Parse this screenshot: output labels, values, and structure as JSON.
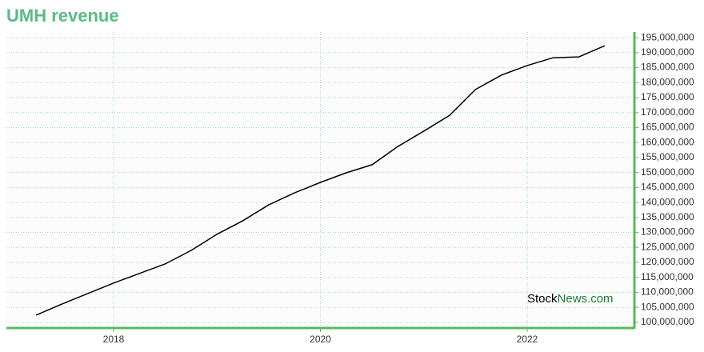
{
  "chart_data": {
    "type": "line",
    "title": "UMH revenue",
    "x": [
      2017.25,
      2017.5,
      2017.75,
      2018,
      2018.25,
      2018.5,
      2018.75,
      2019,
      2019.25,
      2019.5,
      2019.75,
      2020,
      2020.25,
      2020.5,
      2020.75,
      2021,
      2021.25,
      2021.5,
      2021.75,
      2022,
      2022.25,
      2022.5,
      2022.75
    ],
    "series": [
      {
        "name": "Revenue",
        "color": "#000000",
        "values": [
          102400000,
          106100000,
          109600000,
          113100000,
          116300000,
          119500000,
          124000000,
          129400000,
          133900000,
          139200000,
          143200000,
          146700000,
          149900000,
          152600000,
          158700000,
          163800000,
          169100000,
          177700000,
          182500000,
          185700000,
          188300000,
          188600000,
          192300000
        ]
      }
    ],
    "xlim": [
      2016.963,
      2023.037
    ],
    "xticks": [
      2018,
      2020,
      2022
    ],
    "ylim": [
      98100000,
      196900000
    ],
    "yticks": [
      {
        "value": 100000000,
        "label": "100,000,000"
      },
      {
        "value": 105000000,
        "label": "105,000,000"
      },
      {
        "value": 110000000,
        "label": "110,000,000"
      },
      {
        "value": 115000000,
        "label": "115,000,000"
      },
      {
        "value": 120000000,
        "label": "120,000,000"
      },
      {
        "value": 125000000,
        "label": "125,000,000"
      },
      {
        "value": 130000000,
        "label": "130,000,000"
      },
      {
        "value": 135000000,
        "label": "135,000,000"
      },
      {
        "value": 140000000,
        "label": "140,000,000"
      },
      {
        "value": 145000000,
        "label": "145,000,000"
      },
      {
        "value": 150000000,
        "label": "150,000,000"
      },
      {
        "value": 155000000,
        "label": "155,000,000"
      },
      {
        "value": 160000000,
        "label": "160,000,000"
      },
      {
        "value": 165000000,
        "label": "165,000,000"
      },
      {
        "value": 170000000,
        "label": "170,000,000"
      },
      {
        "value": 175000000,
        "label": "175,000,000"
      },
      {
        "value": 180000000,
        "label": "180,000,000"
      },
      {
        "value": 185000000,
        "label": "185,000,000"
      },
      {
        "value": 190000000,
        "label": "190,000,000"
      },
      {
        "value": 195000000,
        "label": "195,000,000"
      }
    ],
    "grid": true,
    "axis_color": "#5cb85c",
    "title_color": "#5cba84",
    "watermark": {
      "first": "Stock",
      "second": "News.com",
      "second_color": "#1a7f2e"
    }
  }
}
